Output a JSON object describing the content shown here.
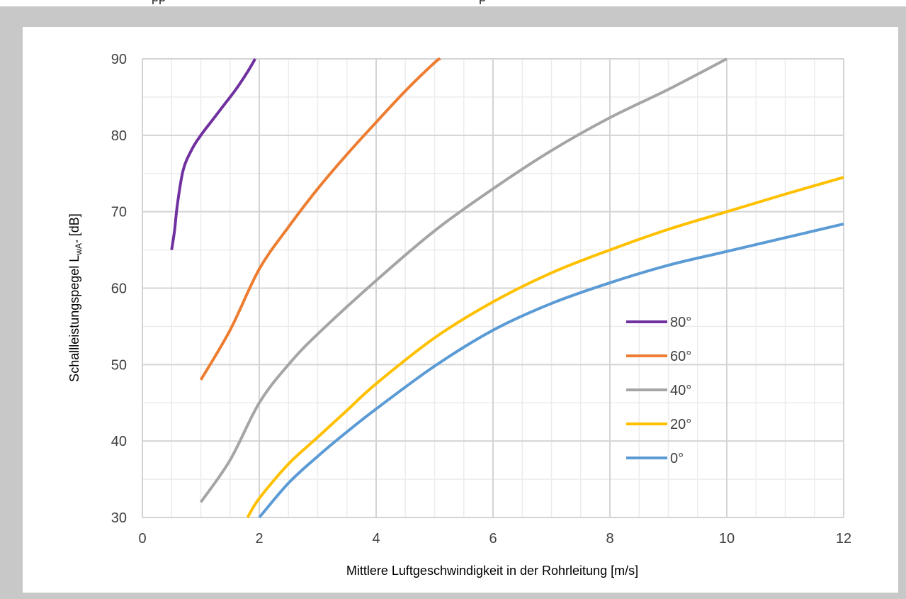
{
  "header": {
    "fragments": [
      {
        "text": "pp"
      },
      {
        "text": "p"
      }
    ]
  },
  "chart_data": {
    "type": "line",
    "title": "",
    "xlabel": "Mittlere Luftgeschwindigkeit in der Rohrleitung [m/s]",
    "ylabel_main": "Schallleistungspegel L",
    "ylabel_sub": "wA°",
    "ylabel_tail": " [dB]",
    "xlim": [
      0,
      12
    ],
    "ylim": [
      30,
      90
    ],
    "x_ticks": [
      "0",
      "2",
      "4",
      "6",
      "8",
      "10",
      "12"
    ],
    "y_ticks": [
      "30",
      "40",
      "50",
      "60",
      "70",
      "80",
      "90"
    ],
    "grid": "major and minor",
    "legend_position": "inside-right",
    "series": [
      {
        "name": "80°",
        "color": "#7030a0",
        "x": [
          0.5,
          0.55,
          0.6,
          0.7,
          0.85,
          1.0,
          1.2,
          1.4,
          1.6,
          1.8,
          1.93
        ],
        "y": [
          65,
          67.5,
          71,
          75.5,
          78.2,
          80.0,
          82.0,
          84.0,
          86.0,
          88.3,
          90
        ]
      },
      {
        "name": "60°",
        "color": "#ed7d31",
        "x": [
          1.0,
          1.5,
          2.0,
          2.5,
          3.0,
          3.5,
          4.0,
          4.5,
          5.0,
          5.1
        ],
        "y": [
          48,
          54.5,
          62.5,
          68.0,
          73.0,
          77.5,
          81.7,
          85.8,
          89.5,
          90
        ]
      },
      {
        "name": "40°",
        "color": "#a5a5a5",
        "x": [
          1.0,
          1.5,
          2.0,
          2.5,
          3.0,
          4.0,
          5.0,
          6.0,
          7.0,
          8.0,
          9.0,
          10.0
        ],
        "y": [
          32,
          37.5,
          45,
          50,
          54,
          61,
          67.5,
          73,
          78,
          82.3,
          86,
          90
        ]
      },
      {
        "name": "20°",
        "color": "#ffc000",
        "x": [
          1.8,
          2.0,
          2.5,
          3.0,
          3.5,
          4.0,
          5.0,
          6.0,
          7.0,
          8.0,
          9.0,
          10.0,
          11.0,
          12.0
        ],
        "y": [
          30,
          32.5,
          37.0,
          40.5,
          44.0,
          47.5,
          53.5,
          58.2,
          62.0,
          65.0,
          67.7,
          70.0,
          72.3,
          74.5
        ]
      },
      {
        "name": "0°",
        "color": "#5b9bd5",
        "x": [
          2.0,
          2.5,
          3.0,
          3.5,
          4.0,
          5.0,
          6.0,
          7.0,
          8.0,
          9.0,
          10.0,
          11.0,
          12.0
        ],
        "y": [
          30,
          34.5,
          38.0,
          41.2,
          44.2,
          49.8,
          54.5,
          58.0,
          60.7,
          63.0,
          64.8,
          66.6,
          68.4
        ]
      }
    ],
    "legend_order": [
      "80°",
      "60°",
      "40°",
      "20°",
      "0°"
    ]
  }
}
